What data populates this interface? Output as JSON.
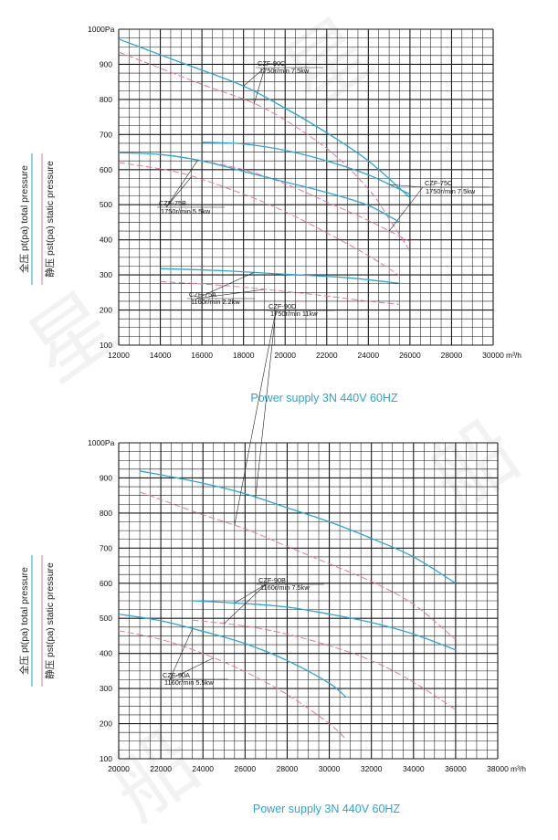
{
  "colors": {
    "grid": "#1a1a1a",
    "total_pressure": "#2aa6d6",
    "static_pressure": "#e07a9a",
    "footer": "#2aa6d6",
    "ylabel_total_underline": "#2aa6d6",
    "ylabel_static_underline": "#e07a9a"
  },
  "chart_data": [
    {
      "type": "line",
      "x_unit": "m³/h",
      "xlim": [
        12000,
        30000
      ],
      "ylim": [
        100,
        1000
      ],
      "x_ticks": [
        12000,
        14000,
        16000,
        18000,
        20000,
        22000,
        24000,
        26000,
        28000,
        30000
      ],
      "y_ticks": [
        100,
        200,
        300,
        400,
        500,
        600,
        700,
        800,
        900,
        1000
      ],
      "y_top_label": "1000Pa",
      "ylabel_total": "全压 pt(pa) total pressure",
      "ylabel_static": "静压 pst(pa) static pressure",
      "footer": "Power supply   3N 440V  60HZ",
      "grid": true,
      "fans": [
        {
          "model": "CZF-90C",
          "spec": "1750r/min 7.5kw",
          "total": [
            [
              12000,
              972
            ],
            [
              15000,
              905
            ],
            [
              18000,
              838
            ],
            [
              20000,
              775
            ],
            [
              22000,
              705
            ],
            [
              24000,
              625
            ],
            [
              26000,
              520
            ]
          ],
          "static": [
            [
              12000,
              935
            ],
            [
              16000,
              843
            ],
            [
              19000,
              775
            ],
            [
              22000,
              660
            ],
            [
              24000,
              545
            ],
            [
              25000,
              460
            ],
            [
              26000,
              368
            ]
          ]
        },
        {
          "model": "CZF-75C",
          "spec": "1750r/min 7.5kw",
          "total": [
            [
              16000,
              678
            ],
            [
              18000,
              673
            ],
            [
              20000,
              655
            ],
            [
              22000,
              625
            ],
            [
              24000,
              585
            ],
            [
              26000,
              530
            ]
          ],
          "static": [
            [
              16000,
              625
            ],
            [
              18000,
              600
            ],
            [
              20000,
              560
            ],
            [
              22000,
              508
            ],
            [
              24000,
              455
            ],
            [
              26000,
              395
            ]
          ]
        },
        {
          "model": "CZF-75B",
          "spec": "1750r/min 5.5kw",
          "total": [
            [
              12000,
              648
            ],
            [
              14000,
              643
            ],
            [
              16000,
              625
            ],
            [
              18000,
              595
            ],
            [
              20000,
              565
            ],
            [
              22000,
              535
            ],
            [
              24000,
              498
            ],
            [
              25500,
              450
            ]
          ],
          "static": [
            [
              12000,
              620
            ],
            [
              15000,
              590
            ],
            [
              18000,
              530
            ],
            [
              20000,
              480
            ],
            [
              22000,
              420
            ],
            [
              24000,
              355
            ],
            [
              25500,
              298
            ]
          ]
        },
        {
          "model": "CZF-75A",
          "spec": "1160r/min 2.2kw",
          "total": [
            [
              14000,
              318
            ],
            [
              17000,
              312
            ],
            [
              20000,
              302
            ],
            [
              23000,
              292
            ],
            [
              25500,
              276
            ]
          ],
          "static": [
            [
              14000,
              281
            ],
            [
              17000,
              270
            ],
            [
              20000,
              253
            ],
            [
              22000,
              240
            ],
            [
              24000,
              225
            ],
            [
              25500,
              216
            ]
          ]
        }
      ]
    },
    {
      "type": "line",
      "x_unit": "m³/h",
      "xlim": [
        20000,
        38000
      ],
      "ylim": [
        100,
        1000
      ],
      "x_ticks": [
        20000,
        22000,
        24000,
        26000,
        28000,
        30000,
        32000,
        34000,
        36000,
        38000
      ],
      "y_ticks": [
        100,
        200,
        300,
        400,
        500,
        600,
        700,
        800,
        900,
        1000
      ],
      "y_top_label": "1000Pa",
      "ylabel_total": "全压 pt(pa) total pressure",
      "ylabel_static": "静压 pst(pa) static pressure",
      "footer": "Power supply   3N 440V  60HZ",
      "grid": true,
      "fans": [
        {
          "model": "CZF-90D",
          "spec": "1750r/min 11kw",
          "total": [
            [
              21000,
              920
            ],
            [
              24000,
              885
            ],
            [
              26000,
              855
            ],
            [
              28000,
              815
            ],
            [
              30000,
              775
            ],
            [
              32000,
              728
            ],
            [
              34000,
              675
            ],
            [
              36000,
              600
            ]
          ],
          "static": [
            [
              21000,
              860
            ],
            [
              24000,
              795
            ],
            [
              26000,
              755
            ],
            [
              28000,
              705
            ],
            [
              30000,
              655
            ],
            [
              32000,
              605
            ],
            [
              34000,
              540
            ],
            [
              36000,
              440
            ]
          ]
        },
        {
          "model": "CZF-90B",
          "spec": "1160r/min 7.5kw",
          "total": [
            [
              23500,
              550
            ],
            [
              26000,
              542
            ],
            [
              28000,
              532
            ],
            [
              30000,
              512
            ],
            [
              32000,
              488
            ],
            [
              34000,
              455
            ],
            [
              36000,
              410
            ]
          ],
          "static": [
            [
              23500,
              495
            ],
            [
              26000,
              478
            ],
            [
              28000,
              455
            ],
            [
              30000,
              422
            ],
            [
              32000,
              380
            ],
            [
              34000,
              318
            ],
            [
              36000,
              240
            ]
          ]
        },
        {
          "model": "CZF-90A",
          "spec": "1160r/min 5.5kw",
          "total": [
            [
              20000,
              512
            ],
            [
              22000,
              493
            ],
            [
              24000,
              463
            ],
            [
              26000,
              428
            ],
            [
              28000,
              380
            ],
            [
              30000,
              315
            ],
            [
              30800,
              275
            ]
          ],
          "static": [
            [
              20000,
              465
            ],
            [
              22000,
              440
            ],
            [
              24000,
              400
            ],
            [
              26000,
              348
            ],
            [
              28000,
              283
            ],
            [
              30000,
              200
            ],
            [
              30800,
              155
            ]
          ]
        }
      ]
    }
  ]
}
